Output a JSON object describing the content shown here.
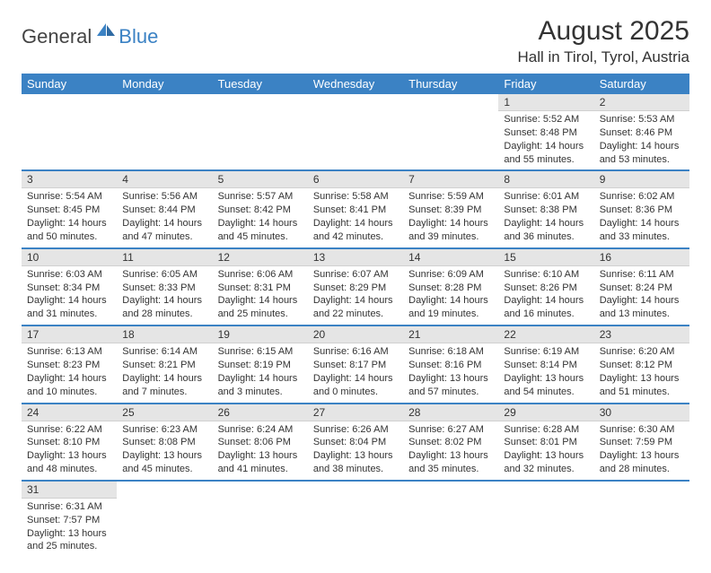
{
  "brand": {
    "dark": "General",
    "blue": "Blue"
  },
  "title": "August 2025",
  "location": "Hall in Tirol, Tyrol, Austria",
  "colors": {
    "header_bg": "#3b82c4",
    "header_text": "#ffffff",
    "daynum_bg": "#e5e5e5",
    "row_border": "#3b82c4",
    "text": "#333333",
    "background": "#ffffff"
  },
  "weekdays": [
    "Sunday",
    "Monday",
    "Tuesday",
    "Wednesday",
    "Thursday",
    "Friday",
    "Saturday"
  ],
  "weeks": [
    [
      {
        "n": "",
        "sr": "",
        "ss": "",
        "dl": ""
      },
      {
        "n": "",
        "sr": "",
        "ss": "",
        "dl": ""
      },
      {
        "n": "",
        "sr": "",
        "ss": "",
        "dl": ""
      },
      {
        "n": "",
        "sr": "",
        "ss": "",
        "dl": ""
      },
      {
        "n": "",
        "sr": "",
        "ss": "",
        "dl": ""
      },
      {
        "n": "1",
        "sr": "Sunrise: 5:52 AM",
        "ss": "Sunset: 8:48 PM",
        "dl": "Daylight: 14 hours and 55 minutes."
      },
      {
        "n": "2",
        "sr": "Sunrise: 5:53 AM",
        "ss": "Sunset: 8:46 PM",
        "dl": "Daylight: 14 hours and 53 minutes."
      }
    ],
    [
      {
        "n": "3",
        "sr": "Sunrise: 5:54 AM",
        "ss": "Sunset: 8:45 PM",
        "dl": "Daylight: 14 hours and 50 minutes."
      },
      {
        "n": "4",
        "sr": "Sunrise: 5:56 AM",
        "ss": "Sunset: 8:44 PM",
        "dl": "Daylight: 14 hours and 47 minutes."
      },
      {
        "n": "5",
        "sr": "Sunrise: 5:57 AM",
        "ss": "Sunset: 8:42 PM",
        "dl": "Daylight: 14 hours and 45 minutes."
      },
      {
        "n": "6",
        "sr": "Sunrise: 5:58 AM",
        "ss": "Sunset: 8:41 PM",
        "dl": "Daylight: 14 hours and 42 minutes."
      },
      {
        "n": "7",
        "sr": "Sunrise: 5:59 AM",
        "ss": "Sunset: 8:39 PM",
        "dl": "Daylight: 14 hours and 39 minutes."
      },
      {
        "n": "8",
        "sr": "Sunrise: 6:01 AM",
        "ss": "Sunset: 8:38 PM",
        "dl": "Daylight: 14 hours and 36 minutes."
      },
      {
        "n": "9",
        "sr": "Sunrise: 6:02 AM",
        "ss": "Sunset: 8:36 PM",
        "dl": "Daylight: 14 hours and 33 minutes."
      }
    ],
    [
      {
        "n": "10",
        "sr": "Sunrise: 6:03 AM",
        "ss": "Sunset: 8:34 PM",
        "dl": "Daylight: 14 hours and 31 minutes."
      },
      {
        "n": "11",
        "sr": "Sunrise: 6:05 AM",
        "ss": "Sunset: 8:33 PM",
        "dl": "Daylight: 14 hours and 28 minutes."
      },
      {
        "n": "12",
        "sr": "Sunrise: 6:06 AM",
        "ss": "Sunset: 8:31 PM",
        "dl": "Daylight: 14 hours and 25 minutes."
      },
      {
        "n": "13",
        "sr": "Sunrise: 6:07 AM",
        "ss": "Sunset: 8:29 PM",
        "dl": "Daylight: 14 hours and 22 minutes."
      },
      {
        "n": "14",
        "sr": "Sunrise: 6:09 AM",
        "ss": "Sunset: 8:28 PM",
        "dl": "Daylight: 14 hours and 19 minutes."
      },
      {
        "n": "15",
        "sr": "Sunrise: 6:10 AM",
        "ss": "Sunset: 8:26 PM",
        "dl": "Daylight: 14 hours and 16 minutes."
      },
      {
        "n": "16",
        "sr": "Sunrise: 6:11 AM",
        "ss": "Sunset: 8:24 PM",
        "dl": "Daylight: 14 hours and 13 minutes."
      }
    ],
    [
      {
        "n": "17",
        "sr": "Sunrise: 6:13 AM",
        "ss": "Sunset: 8:23 PM",
        "dl": "Daylight: 14 hours and 10 minutes."
      },
      {
        "n": "18",
        "sr": "Sunrise: 6:14 AM",
        "ss": "Sunset: 8:21 PM",
        "dl": "Daylight: 14 hours and 7 minutes."
      },
      {
        "n": "19",
        "sr": "Sunrise: 6:15 AM",
        "ss": "Sunset: 8:19 PM",
        "dl": "Daylight: 14 hours and 3 minutes."
      },
      {
        "n": "20",
        "sr": "Sunrise: 6:16 AM",
        "ss": "Sunset: 8:17 PM",
        "dl": "Daylight: 14 hours and 0 minutes."
      },
      {
        "n": "21",
        "sr": "Sunrise: 6:18 AM",
        "ss": "Sunset: 8:16 PM",
        "dl": "Daylight: 13 hours and 57 minutes."
      },
      {
        "n": "22",
        "sr": "Sunrise: 6:19 AM",
        "ss": "Sunset: 8:14 PM",
        "dl": "Daylight: 13 hours and 54 minutes."
      },
      {
        "n": "23",
        "sr": "Sunrise: 6:20 AM",
        "ss": "Sunset: 8:12 PM",
        "dl": "Daylight: 13 hours and 51 minutes."
      }
    ],
    [
      {
        "n": "24",
        "sr": "Sunrise: 6:22 AM",
        "ss": "Sunset: 8:10 PM",
        "dl": "Daylight: 13 hours and 48 minutes."
      },
      {
        "n": "25",
        "sr": "Sunrise: 6:23 AM",
        "ss": "Sunset: 8:08 PM",
        "dl": "Daylight: 13 hours and 45 minutes."
      },
      {
        "n": "26",
        "sr": "Sunrise: 6:24 AM",
        "ss": "Sunset: 8:06 PM",
        "dl": "Daylight: 13 hours and 41 minutes."
      },
      {
        "n": "27",
        "sr": "Sunrise: 6:26 AM",
        "ss": "Sunset: 8:04 PM",
        "dl": "Daylight: 13 hours and 38 minutes."
      },
      {
        "n": "28",
        "sr": "Sunrise: 6:27 AM",
        "ss": "Sunset: 8:02 PM",
        "dl": "Daylight: 13 hours and 35 minutes."
      },
      {
        "n": "29",
        "sr": "Sunrise: 6:28 AM",
        "ss": "Sunset: 8:01 PM",
        "dl": "Daylight: 13 hours and 32 minutes."
      },
      {
        "n": "30",
        "sr": "Sunrise: 6:30 AM",
        "ss": "Sunset: 7:59 PM",
        "dl": "Daylight: 13 hours and 28 minutes."
      }
    ],
    [
      {
        "n": "31",
        "sr": "Sunrise: 6:31 AM",
        "ss": "Sunset: 7:57 PM",
        "dl": "Daylight: 13 hours and 25 minutes."
      },
      {
        "n": "",
        "sr": "",
        "ss": "",
        "dl": ""
      },
      {
        "n": "",
        "sr": "",
        "ss": "",
        "dl": ""
      },
      {
        "n": "",
        "sr": "",
        "ss": "",
        "dl": ""
      },
      {
        "n": "",
        "sr": "",
        "ss": "",
        "dl": ""
      },
      {
        "n": "",
        "sr": "",
        "ss": "",
        "dl": ""
      },
      {
        "n": "",
        "sr": "",
        "ss": "",
        "dl": ""
      }
    ]
  ]
}
